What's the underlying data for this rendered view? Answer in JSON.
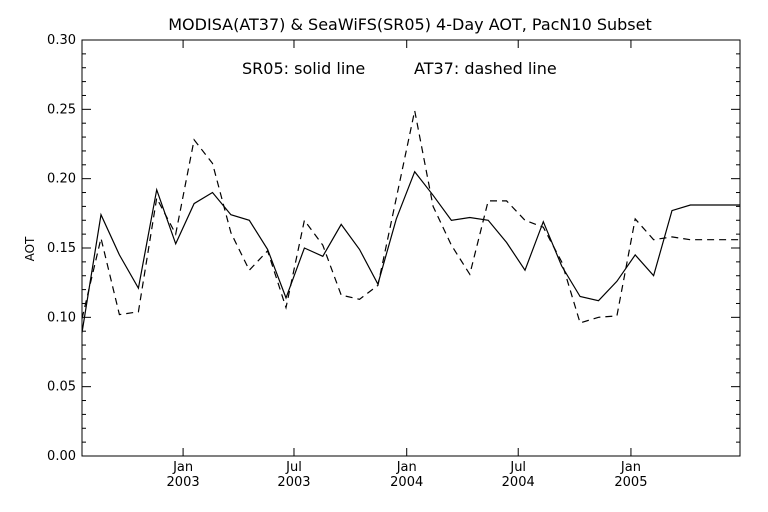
{
  "chart_data": {
    "type": "line",
    "title": "MODISA(AT37) & SeaWiFS(SR05) 4-Day AOT, PacN10 Subset",
    "annotation_left": "SR05: solid line",
    "annotation_right": "AT37: dashed line",
    "xlabel": "",
    "ylabel": "AOT",
    "xlim": [
      "2002-07-20",
      "2005-06-28"
    ],
    "ylim": [
      0,
      0.3
    ],
    "yticks": [
      "0.00",
      "0.05",
      "0.10",
      "0.15",
      "0.20",
      "0.25",
      "0.30"
    ],
    "xticks": [
      {
        "date": "2003-01-01",
        "month": "Jan",
        "year": "2003"
      },
      {
        "date": "2003-07-01",
        "month": "Jul",
        "year": "2003"
      },
      {
        "date": "2004-01-01",
        "month": "Jan",
        "year": "2004"
      },
      {
        "date": "2004-07-01",
        "month": "Jul",
        "year": "2004"
      },
      {
        "date": "2005-01-01",
        "month": "Jan",
        "year": "2005"
      }
    ],
    "grid": false,
    "series": [
      {
        "name": "SR05",
        "style": "solid",
        "x": [
          "2002-07-20",
          "2002-08-20",
          "2002-09-19",
          "2002-10-20",
          "2002-11-19",
          "2002-12-20",
          "2003-01-19",
          "2003-02-18",
          "2003-03-20",
          "2003-04-19",
          "2003-05-19",
          "2003-06-18",
          "2003-07-18",
          "2003-08-17",
          "2003-09-16",
          "2003-10-16",
          "2003-11-15",
          "2003-12-15",
          "2004-01-14",
          "2004-02-13",
          "2004-03-14",
          "2004-04-13",
          "2004-05-13",
          "2004-06-12",
          "2004-07-12",
          "2004-08-11",
          "2004-09-10",
          "2004-10-10",
          "2004-11-09",
          "2004-12-09",
          "2005-01-08",
          "2005-02-07",
          "2005-03-09",
          "2005-04-08",
          "2005-05-08",
          "2005-06-07",
          "2005-06-28"
        ],
        "values": [
          0.089,
          0.174,
          0.145,
          0.121,
          0.192,
          0.153,
          0.182,
          0.19,
          0.174,
          0.17,
          0.149,
          0.114,
          0.15,
          0.144,
          0.167,
          0.149,
          0.124,
          0.171,
          0.205,
          0.188,
          0.17,
          0.172,
          0.17,
          0.154,
          0.134,
          0.169,
          0.137,
          0.115,
          0.112,
          0.126,
          0.145,
          0.13,
          0.177,
          0.181,
          0.181,
          0.181,
          0.181
        ]
      },
      {
        "name": "AT37",
        "style": "dashed",
        "x": [
          "2002-07-20",
          "2002-08-20",
          "2002-09-19",
          "2002-10-20",
          "2002-11-19",
          "2002-12-20",
          "2003-01-19",
          "2003-02-18",
          "2003-03-20",
          "2003-04-19",
          "2003-05-19",
          "2003-06-18",
          "2003-07-18",
          "2003-08-17",
          "2003-09-16",
          "2003-10-16",
          "2003-11-15",
          "2003-12-15",
          "2004-01-14",
          "2004-02-13",
          "2004-03-14",
          "2004-04-13",
          "2004-05-13",
          "2004-06-12",
          "2004-07-12",
          "2004-08-11",
          "2004-09-10",
          "2004-10-10",
          "2004-11-09",
          "2004-12-09",
          "2005-01-08",
          "2005-02-07",
          "2005-03-09",
          "2005-04-08",
          "2005-05-08",
          "2005-06-07",
          "2005-06-28"
        ],
        "values": [
          0.099,
          0.157,
          0.102,
          0.104,
          0.186,
          0.16,
          0.228,
          0.211,
          0.161,
          0.134,
          0.148,
          0.107,
          0.17,
          0.152,
          0.116,
          0.113,
          0.123,
          0.186,
          0.249,
          0.18,
          0.152,
          0.131,
          0.184,
          0.184,
          0.17,
          0.165,
          0.14,
          0.096,
          0.1,
          0.101,
          0.171,
          0.156,
          0.158,
          0.156,
          0.156,
          0.156,
          0.156
        ]
      }
    ]
  }
}
